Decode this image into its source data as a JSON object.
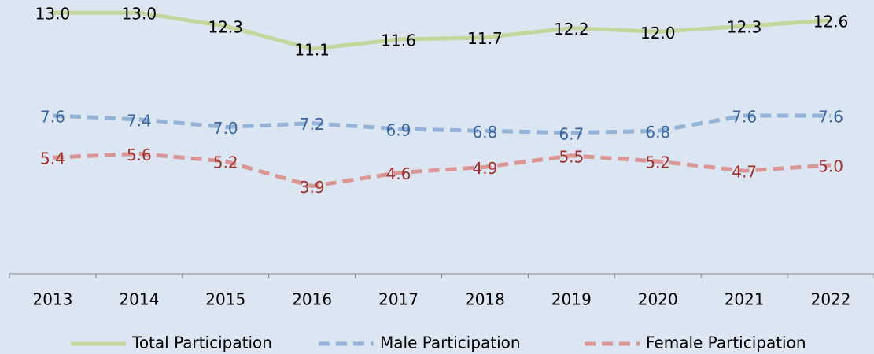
{
  "chart_data": {
    "type": "line",
    "categories": [
      "2013",
      "2014",
      "2015",
      "2016",
      "2017",
      "2018",
      "2019",
      "2020",
      "2021",
      "2022"
    ],
    "series": [
      {
        "name": "Total Participation",
        "color": "#c3d69b",
        "label_color": "#000000",
        "dashed": false,
        "values": [
          13.0,
          13.0,
          12.3,
          11.1,
          11.6,
          11.7,
          12.2,
          12.0,
          12.3,
          12.6
        ],
        "value_labels": [
          "13.0",
          "13.0",
          "12.3",
          "11.1",
          "11.6",
          "11.7",
          "12.2",
          "12.0",
          "12.3",
          "12.6"
        ]
      },
      {
        "name": "Male Participation",
        "color": "#95b3d7",
        "label_color": "#3a66a0",
        "dashed": true,
        "values": [
          7.6,
          7.4,
          7.0,
          7.2,
          6.9,
          6.8,
          6.7,
          6.8,
          7.6,
          7.6
        ],
        "value_labels": [
          "7.6",
          "7.4",
          "7.0",
          "7.2",
          "6.9",
          "6.8",
          "6.7",
          "6.8",
          "7.6",
          "7.6"
        ]
      },
      {
        "name": "Female Participation",
        "color": "#d99694",
        "label_color": "#a0322e",
        "dashed": true,
        "values": [
          5.4,
          5.6,
          5.2,
          3.9,
          4.6,
          4.9,
          5.5,
          5.2,
          4.7,
          5.0
        ],
        "value_labels": [
          "5.4",
          "5.6",
          "5.2",
          "3.9",
          "4.6",
          "4.9",
          "5.5",
          "5.2",
          "4.7",
          "5.0"
        ]
      }
    ],
    "ylim": [
      0,
      14
    ],
    "legend": "bottom"
  }
}
